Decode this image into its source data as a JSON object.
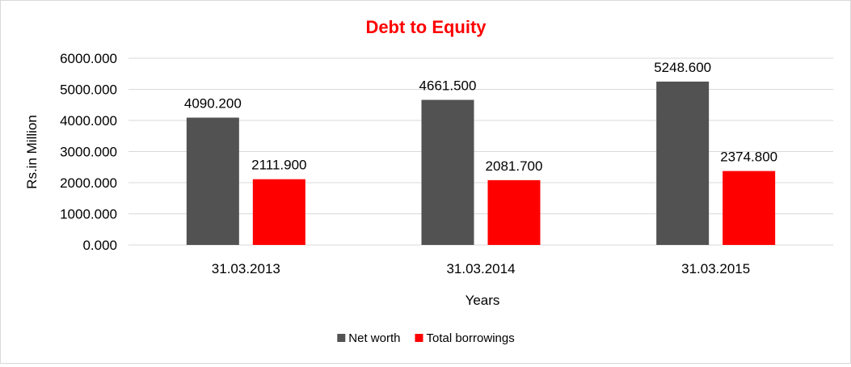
{
  "chart_data": {
    "type": "bar",
    "title": "Debt to Equity",
    "title_color": "#ff0000",
    "categories": [
      "31.03.2013",
      "31.03.2014",
      "31.03.2015"
    ],
    "series": [
      {
        "name": "Net worth",
        "color": "#525252",
        "values": [
          4090.2,
          4661.5,
          5248.6
        ],
        "labels": [
          "4090.200",
          "4661.500",
          "5248.600"
        ]
      },
      {
        "name": "Total borrowings",
        "color": "#ff0000",
        "values": [
          2111.9,
          2081.7,
          2374.8
        ],
        "labels": [
          "2111.900",
          "2081.700",
          "2374.800"
        ]
      }
    ],
    "xlabel": "Years",
    "ylabel": "Rs.in Million",
    "ylim": [
      0,
      6000
    ],
    "yticks": [
      0,
      1000,
      2000,
      3000,
      4000,
      5000,
      6000
    ],
    "ytick_labels": [
      "0.000",
      "1000.000",
      "2000.000",
      "3000.000",
      "4000.000",
      "5000.000",
      "6000.000"
    ],
    "grid": true,
    "legend_position": "bottom"
  }
}
